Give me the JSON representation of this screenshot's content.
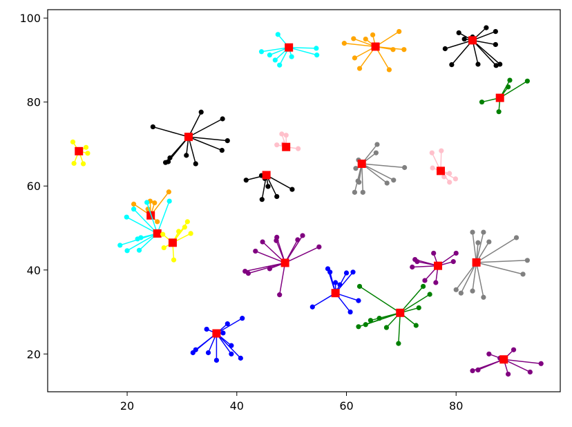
{
  "chart_data": {
    "type": "scatter",
    "title": "",
    "xlabel": "",
    "ylabel": "",
    "xlim": [
      5.5,
      99
    ],
    "ylim": [
      11,
      102
    ],
    "xticks": [
      20,
      40,
      60,
      80
    ],
    "yticks": [
      20,
      40,
      60,
      80,
      100
    ],
    "grid": false,
    "legend": "none",
    "center_color": "#ff0000",
    "clusters": [
      {
        "color": "#ffff00",
        "center": [
          11.2,
          68.3
        ],
        "points": [
          [
            10.1,
            70.5
          ],
          [
            12.5,
            69.2
          ],
          [
            12.8,
            67.8
          ],
          [
            10.3,
            65.4
          ],
          [
            12.0,
            65.3
          ]
        ]
      },
      {
        "color": "#00ffff",
        "center": [
          49.5,
          93.0
        ],
        "points": [
          [
            47.5,
            96.1
          ],
          [
            44.5,
            92.0
          ],
          [
            46.0,
            91.2
          ],
          [
            47.0,
            90.0
          ],
          [
            47.8,
            88.8
          ],
          [
            50.0,
            90.8
          ],
          [
            54.5,
            92.8
          ],
          [
            54.6,
            91.2
          ]
        ]
      },
      {
        "color": "#ffa500",
        "center": [
          65.3,
          93.2
        ],
        "points": [
          [
            59.6,
            94.0
          ],
          [
            61.3,
            95.1
          ],
          [
            63.5,
            95.0
          ],
          [
            64.8,
            96.0
          ],
          [
            69.6,
            96.8
          ],
          [
            70.5,
            92.5
          ],
          [
            68.5,
            92.5
          ],
          [
            67.8,
            87.7
          ],
          [
            62.4,
            88.0
          ],
          [
            61.5,
            90.5
          ]
        ]
      },
      {
        "color": "#000000",
        "center": [
          83.0,
          94.7
        ],
        "points": [
          [
            78.0,
            92.7
          ],
          [
            80.5,
            96.5
          ],
          [
            81.5,
            95.0
          ],
          [
            83.0,
            95.5
          ],
          [
            85.5,
            97.7
          ],
          [
            87.2,
            96.8
          ],
          [
            87.2,
            93.7
          ],
          [
            87.3,
            88.7
          ],
          [
            88.0,
            89.0
          ],
          [
            84.0,
            89.0
          ],
          [
            79.2,
            88.9
          ]
        ]
      },
      {
        "color": "#008000",
        "center": [
          88.0,
          81.0
        ],
        "points": [
          [
            84.7,
            80.0
          ],
          [
            87.8,
            77.7
          ],
          [
            89.5,
            83.6
          ],
          [
            89.8,
            85.2
          ],
          [
            93.0,
            85.0
          ]
        ]
      },
      {
        "color": "#000000",
        "center": [
          31.2,
          71.7
        ],
        "points": [
          [
            24.7,
            74.1
          ],
          [
            33.5,
            77.6
          ],
          [
            37.4,
            76.0
          ],
          [
            38.3,
            70.8
          ],
          [
            37.3,
            68.5
          ],
          [
            32.5,
            65.3
          ],
          [
            30.8,
            67.3
          ],
          [
            27.0,
            65.6
          ],
          [
            27.5,
            65.8
          ],
          [
            27.8,
            66.7
          ]
        ]
      },
      {
        "color": "#ffc0cb",
        "center": [
          49.0,
          69.3
        ],
        "points": [
          [
            47.3,
            69.8
          ],
          [
            48.2,
            72.4
          ],
          [
            49.0,
            72.1
          ],
          [
            51.2,
            68.9
          ],
          [
            49.3,
            69.1
          ],
          [
            48.5,
            70.0
          ]
        ]
      },
      {
        "color": "#000000",
        "center": [
          45.4,
          62.6
        ],
        "points": [
          [
            41.7,
            61.4
          ],
          [
            44.5,
            62.5
          ],
          [
            45.1,
            61.8
          ],
          [
            45.7,
            59.9
          ],
          [
            44.6,
            56.8
          ],
          [
            47.3,
            57.5
          ],
          [
            50.1,
            59.2
          ]
        ]
      },
      {
        "color": "#808080",
        "center": [
          62.8,
          65.3
        ],
        "points": [
          [
            62.2,
            66.2
          ],
          [
            65.6,
            69.9
          ],
          [
            65.4,
            67.9
          ],
          [
            70.6,
            64.4
          ],
          [
            68.6,
            61.4
          ],
          [
            67.4,
            60.7
          ],
          [
            63.0,
            58.5
          ],
          [
            62.3,
            60.9
          ],
          [
            61.5,
            58.5
          ],
          [
            62.1,
            61.2
          ],
          [
            61.7,
            64.2
          ]
        ]
      },
      {
        "color": "#ffc0cb",
        "center": [
          77.2,
          63.6
        ],
        "points": [
          [
            75.6,
            67.9
          ],
          [
            77.3,
            68.4
          ],
          [
            78.8,
            63.0
          ],
          [
            79.9,
            61.7
          ],
          [
            78.8,
            60.9
          ],
          [
            77.8,
            62.2
          ],
          [
            75.7,
            64.3
          ]
        ]
      },
      {
        "color": "#ffa500",
        "center": [
          24.3,
          53.0
        ],
        "points": [
          [
            21.2,
            55.7
          ],
          [
            24.2,
            56.4
          ],
          [
            27.6,
            58.6
          ],
          [
            25.0,
            56.0
          ],
          [
            23.8,
            54.5
          ],
          [
            25.5,
            51.5
          ]
        ]
      },
      {
        "color": "#00ffff",
        "center": [
          25.5,
          48.7
        ],
        "points": [
          [
            19.9,
            52.6
          ],
          [
            21.2,
            54.5
          ],
          [
            23.6,
            56.1
          ],
          [
            27.7,
            56.4
          ],
          [
            22.5,
            47.7
          ],
          [
            22.2,
            44.7
          ],
          [
            20.0,
            44.6
          ],
          [
            18.7,
            45.9
          ],
          [
            21.9,
            47.4
          ]
        ]
      },
      {
        "color": "#ffff00",
        "center": [
          28.3,
          46.5
        ],
        "points": [
          [
            26.5,
            48.5
          ],
          [
            29.4,
            49.2
          ],
          [
            30.5,
            50.2
          ],
          [
            31.0,
            51.5
          ],
          [
            31.6,
            48.7
          ],
          [
            28.5,
            42.4
          ],
          [
            26.7,
            45.3
          ]
        ]
      },
      {
        "color": "#800080",
        "center": [
          48.8,
          41.7
        ],
        "points": [
          [
            41.5,
            39.7
          ],
          [
            42.1,
            39.2
          ],
          [
            43.4,
            44.5
          ],
          [
            44.7,
            46.7
          ],
          [
            47.3,
            47.8
          ],
          [
            47.2,
            47.0
          ],
          [
            51.1,
            47.2
          ],
          [
            52.0,
            48.2
          ],
          [
            55.0,
            45.5
          ],
          [
            47.8,
            34.1
          ],
          [
            46.0,
            40.3
          ]
        ]
      },
      {
        "color": "#800080",
        "center": [
          76.7,
          41.0
        ],
        "points": [
          [
            72.5,
            42.5
          ],
          [
            72.0,
            40.7
          ],
          [
            75.9,
            44.0
          ],
          [
            79.5,
            42.0
          ],
          [
            80.0,
            44.0
          ],
          [
            76.3,
            37.0
          ],
          [
            74.3,
            37.5
          ],
          [
            72.9,
            42.0
          ]
        ]
      },
      {
        "color": "#808080",
        "center": [
          83.7,
          41.8
        ],
        "points": [
          [
            83.0,
            49.0
          ],
          [
            84.0,
            46.5
          ],
          [
            85.0,
            49.0
          ],
          [
            86.0,
            46.7
          ],
          [
            91.0,
            47.7
          ],
          [
            93.0,
            42.3
          ],
          [
            92.2,
            39.0
          ],
          [
            85.0,
            33.5
          ],
          [
            83.0,
            35.0
          ],
          [
            80.0,
            35.3
          ],
          [
            80.9,
            34.5
          ]
        ]
      },
      {
        "color": "#0000ff",
        "center": [
          58.0,
          34.5
        ],
        "points": [
          [
            56.6,
            40.3
          ],
          [
            57.0,
            39.5
          ],
          [
            58.0,
            37.0
          ],
          [
            58.8,
            36.5
          ],
          [
            60.0,
            39.3
          ],
          [
            61.2,
            39.5
          ],
          [
            62.2,
            32.7
          ],
          [
            60.7,
            30.0
          ],
          [
            53.8,
            31.2
          ],
          [
            58.2,
            35.0
          ]
        ]
      },
      {
        "color": "#008000",
        "center": [
          69.8,
          29.8
        ],
        "points": [
          [
            62.4,
            36.1
          ],
          [
            66.0,
            28.5
          ],
          [
            64.4,
            28.0
          ],
          [
            63.5,
            27.0
          ],
          [
            62.2,
            26.5
          ],
          [
            67.3,
            26.3
          ],
          [
            69.5,
            22.5
          ],
          [
            72.7,
            26.8
          ],
          [
            74.0,
            36.1
          ],
          [
            75.2,
            34.2
          ],
          [
            73.2,
            31.0
          ]
        ]
      },
      {
        "color": "#0000ff",
        "center": [
          36.3,
          24.9
        ],
        "points": [
          [
            32.5,
            21.0
          ],
          [
            32.0,
            20.3
          ],
          [
            34.5,
            25.9
          ],
          [
            37.5,
            25.0
          ],
          [
            38.3,
            27.2
          ],
          [
            41.0,
            28.5
          ],
          [
            39.0,
            22.0
          ],
          [
            39.0,
            20.0
          ],
          [
            40.7,
            19.0
          ],
          [
            36.3,
            18.5
          ],
          [
            34.8,
            20.3
          ]
        ]
      },
      {
        "color": "#800080",
        "center": [
          88.7,
          18.7
        ],
        "points": [
          [
            83.0,
            16.0
          ],
          [
            84.0,
            16.2
          ],
          [
            86.0,
            20.0
          ],
          [
            90.5,
            21.0
          ],
          [
            95.5,
            17.7
          ],
          [
            93.5,
            15.7
          ],
          [
            89.5,
            15.2
          ],
          [
            88.0,
            19.0
          ]
        ]
      }
    ]
  }
}
